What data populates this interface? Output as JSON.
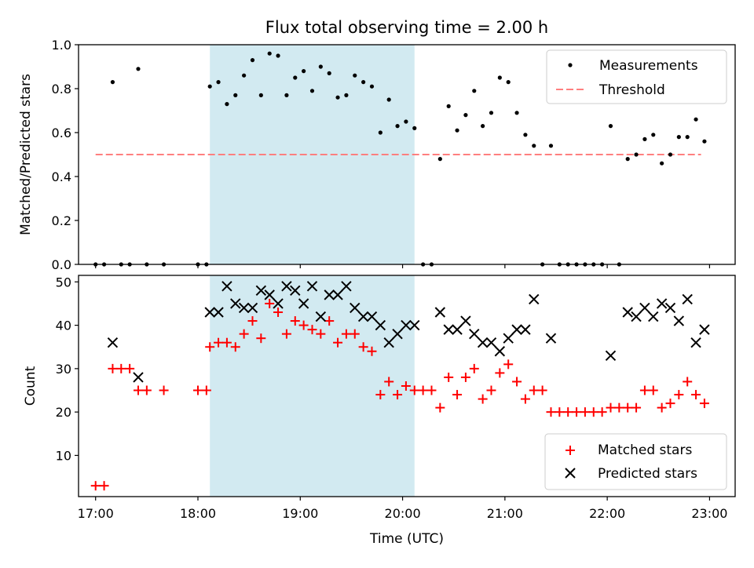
{
  "colors": {
    "shaded": "#add8e6",
    "threshold": "#ff7f7f",
    "matched": "#ff0000",
    "predicted": "#000000",
    "measurement": "#000000"
  },
  "chart_data": [
    {
      "type": "scatter",
      "title": "Flux total observing time = 2.00 h",
      "ylabel": "Matched/Predicted stars",
      "xlabel": "",
      "xlim": [
        "16:50",
        "23:15"
      ],
      "ylim": [
        0,
        1.0
      ],
      "yticks": [
        "0.0",
        "0.2",
        "0.4",
        "0.6",
        "0.8",
        "1.0"
      ],
      "shaded_interval": [
        "18:07",
        "20:07"
      ],
      "threshold": {
        "name": "Threshold",
        "y": 0.5,
        "x_range": [
          "17:00",
          "22:55"
        ]
      },
      "legend": [
        "Measurements",
        "Threshold"
      ],
      "legend_position": "top-right",
      "series": [
        {
          "name": "Measurements",
          "points": [
            [
              "17:00",
              0
            ],
            [
              "17:05",
              0
            ],
            [
              "17:10",
              0.83
            ],
            [
              "17:15",
              0
            ],
            [
              "17:20",
              0
            ],
            [
              "17:25",
              0.89
            ],
            [
              "17:30",
              0
            ],
            [
              "17:40",
              0
            ],
            [
              "18:00",
              0
            ],
            [
              "18:05",
              0
            ],
            [
              "18:07",
              0.81
            ],
            [
              "18:12",
              0.83
            ],
            [
              "18:17",
              0.73
            ],
            [
              "18:22",
              0.77
            ],
            [
              "18:27",
              0.86
            ],
            [
              "18:32",
              0.93
            ],
            [
              "18:37",
              0.77
            ],
            [
              "18:42",
              0.96
            ],
            [
              "18:47",
              0.95
            ],
            [
              "18:52",
              0.77
            ],
            [
              "18:57",
              0.85
            ],
            [
              "19:02",
              0.88
            ],
            [
              "19:07",
              0.79
            ],
            [
              "19:12",
              0.9
            ],
            [
              "19:17",
              0.87
            ],
            [
              "19:22",
              0.76
            ],
            [
              "19:27",
              0.77
            ],
            [
              "19:32",
              0.86
            ],
            [
              "19:37",
              0.83
            ],
            [
              "19:42",
              0.81
            ],
            [
              "19:47",
              0.6
            ],
            [
              "19:52",
              0.75
            ],
            [
              "19:57",
              0.63
            ],
            [
              "20:02",
              0.65
            ],
            [
              "20:07",
              0.62
            ],
            [
              "20:12",
              0
            ],
            [
              "20:17",
              0
            ],
            [
              "20:22",
              0.48
            ],
            [
              "20:27",
              0.72
            ],
            [
              "20:32",
              0.61
            ],
            [
              "20:37",
              0.68
            ],
            [
              "20:42",
              0.79
            ],
            [
              "20:47",
              0.63
            ],
            [
              "20:52",
              0.69
            ],
            [
              "20:57",
              0.85
            ],
            [
              "21:02",
              0.83
            ],
            [
              "21:07",
              0.69
            ],
            [
              "21:12",
              0.59
            ],
            [
              "21:17",
              0.54
            ],
            [
              "21:22",
              0
            ],
            [
              "21:27",
              0.54
            ],
            [
              "21:32",
              0
            ],
            [
              "21:37",
              0
            ],
            [
              "21:42",
              0
            ],
            [
              "21:47",
              0
            ],
            [
              "21:52",
              0
            ],
            [
              "21:57",
              0
            ],
            [
              "22:02",
              0.63
            ],
            [
              "22:07",
              0
            ],
            [
              "22:12",
              0.48
            ],
            [
              "22:17",
              0.5
            ],
            [
              "22:22",
              0.57
            ],
            [
              "22:27",
              0.59
            ],
            [
              "22:32",
              0.46
            ],
            [
              "22:37",
              0.5
            ],
            [
              "22:42",
              0.58
            ],
            [
              "22:47",
              0.58
            ],
            [
              "22:52",
              0.66
            ],
            [
              "22:57",
              0.56
            ]
          ]
        }
      ]
    },
    {
      "type": "scatter",
      "title": "",
      "ylabel": "Count",
      "xlabel": "Time (UTC)",
      "xlim": [
        "16:50",
        "23:15"
      ],
      "ylim": [
        0.5,
        51.5
      ],
      "yticks": [
        "10",
        "20",
        "30",
        "40",
        "50"
      ],
      "xticks": [
        "17:00",
        "18:00",
        "19:00",
        "20:00",
        "21:00",
        "22:00",
        "23:00"
      ],
      "shaded_interval": [
        "18:07",
        "20:07"
      ],
      "legend": [
        "Matched stars",
        "Predicted stars"
      ],
      "legend_position": "bottom-right",
      "series": [
        {
          "name": "Matched stars",
          "points": [
            [
              "17:00",
              3
            ],
            [
              "17:05",
              3
            ],
            [
              "17:10",
              30
            ],
            [
              "17:15",
              30
            ],
            [
              "17:20",
              30
            ],
            [
              "17:25",
              25
            ],
            [
              "17:30",
              25
            ],
            [
              "17:40",
              25
            ],
            [
              "18:00",
              25
            ],
            [
              "18:05",
              25
            ],
            [
              "18:07",
              35
            ],
            [
              "18:12",
              36
            ],
            [
              "18:17",
              36
            ],
            [
              "18:22",
              35
            ],
            [
              "18:27",
              38
            ],
            [
              "18:32",
              41
            ],
            [
              "18:37",
              37
            ],
            [
              "18:42",
              45
            ],
            [
              "18:47",
              43
            ],
            [
              "18:52",
              38
            ],
            [
              "18:57",
              41
            ],
            [
              "19:02",
              40
            ],
            [
              "19:07",
              39
            ],
            [
              "19:12",
              38
            ],
            [
              "19:17",
              41
            ],
            [
              "19:22",
              36
            ],
            [
              "19:27",
              38
            ],
            [
              "19:32",
              38
            ],
            [
              "19:37",
              35
            ],
            [
              "19:42",
              34
            ],
            [
              "19:47",
              24
            ],
            [
              "19:52",
              27
            ],
            [
              "19:57",
              24
            ],
            [
              "20:02",
              26
            ],
            [
              "20:07",
              25
            ],
            [
              "20:12",
              25
            ],
            [
              "20:17",
              25
            ],
            [
              "20:22",
              21
            ],
            [
              "20:27",
              28
            ],
            [
              "20:32",
              24
            ],
            [
              "20:37",
              28
            ],
            [
              "20:42",
              30
            ],
            [
              "20:47",
              23
            ],
            [
              "20:52",
              25
            ],
            [
              "20:57",
              29
            ],
            [
              "21:02",
              31
            ],
            [
              "21:07",
              27
            ],
            [
              "21:12",
              23
            ],
            [
              "21:17",
              25
            ],
            [
              "21:22",
              25
            ],
            [
              "21:27",
              20
            ],
            [
              "21:32",
              20
            ],
            [
              "21:37",
              20
            ],
            [
              "21:42",
              20
            ],
            [
              "21:47",
              20
            ],
            [
              "21:52",
              20
            ],
            [
              "21:57",
              20
            ],
            [
              "22:02",
              21
            ],
            [
              "22:07",
              21
            ],
            [
              "22:12",
              21
            ],
            [
              "22:17",
              21
            ],
            [
              "22:22",
              25
            ],
            [
              "22:27",
              25
            ],
            [
              "22:32",
              21
            ],
            [
              "22:37",
              22
            ],
            [
              "22:42",
              24
            ],
            [
              "22:47",
              27
            ],
            [
              "22:52",
              24
            ],
            [
              "22:57",
              22
            ]
          ]
        },
        {
          "name": "Predicted stars",
          "points": [
            [
              "17:10",
              36
            ],
            [
              "17:25",
              28
            ],
            [
              "18:07",
              43
            ],
            [
              "18:12",
              43
            ],
            [
              "18:17",
              49
            ],
            [
              "18:22",
              45
            ],
            [
              "18:27",
              44
            ],
            [
              "18:32",
              44
            ],
            [
              "18:37",
              48
            ],
            [
              "18:42",
              47
            ],
            [
              "18:47",
              45
            ],
            [
              "18:52",
              49
            ],
            [
              "18:57",
              48
            ],
            [
              "19:02",
              45
            ],
            [
              "19:07",
              49
            ],
            [
              "19:12",
              42
            ],
            [
              "19:17",
              47
            ],
            [
              "19:22",
              47
            ],
            [
              "19:27",
              49
            ],
            [
              "19:32",
              44
            ],
            [
              "19:37",
              42
            ],
            [
              "19:42",
              42
            ],
            [
              "19:47",
              40
            ],
            [
              "19:52",
              36
            ],
            [
              "19:57",
              38
            ],
            [
              "20:02",
              40
            ],
            [
              "20:07",
              40
            ],
            [
              "20:22",
              43
            ],
            [
              "20:27",
              39
            ],
            [
              "20:32",
              39
            ],
            [
              "20:37",
              41
            ],
            [
              "20:42",
              38
            ],
            [
              "20:47",
              36
            ],
            [
              "20:52",
              36
            ],
            [
              "20:57",
              34
            ],
            [
              "21:02",
              37
            ],
            [
              "21:07",
              39
            ],
            [
              "21:12",
              39
            ],
            [
              "21:17",
              46
            ],
            [
              "21:27",
              37
            ],
            [
              "22:02",
              33
            ],
            [
              "22:12",
              43
            ],
            [
              "22:17",
              42
            ],
            [
              "22:22",
              44
            ],
            [
              "22:27",
              42
            ],
            [
              "22:32",
              45
            ],
            [
              "22:37",
              44
            ],
            [
              "22:42",
              41
            ],
            [
              "22:47",
              46
            ],
            [
              "22:52",
              36
            ],
            [
              "22:57",
              39
            ]
          ]
        }
      ]
    }
  ]
}
